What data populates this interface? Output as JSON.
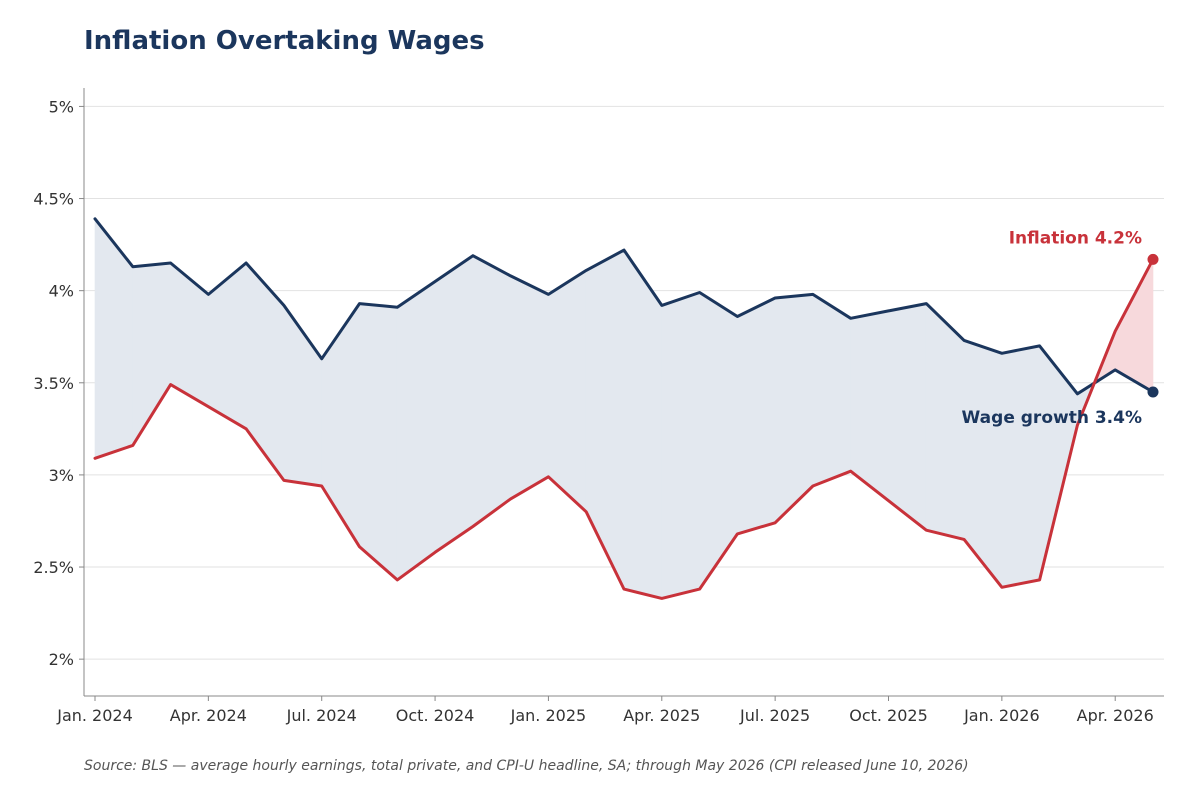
{
  "chart_data": {
    "type": "line",
    "title": "Inflation Overtaking Wages",
    "source": "Source: BLS — average hourly earnings, total private, and CPI-U headline, SA; through May 2026 (CPI released June 10, 2026)",
    "x": [
      "2024-01",
      "2024-02",
      "2024-03",
      "2024-04",
      "2024-05",
      "2024-06",
      "2024-07",
      "2024-08",
      "2024-09",
      "2024-10",
      "2024-11",
      "2024-12",
      "2025-01",
      "2025-02",
      "2025-03",
      "2025-04",
      "2025-05",
      "2025-06",
      "2025-07",
      "2025-08",
      "2025-09",
      "2025-10",
      "2025-11",
      "2025-12",
      "2026-01",
      "2026-02",
      "2026-03",
      "2026-04",
      "2026-05"
    ],
    "series": [
      {
        "name": "Wage growth",
        "color": "#1b365d",
        "end_label": "Wage growth 3.4%",
        "values": [
          4.39,
          4.13,
          4.15,
          3.98,
          4.15,
          3.92,
          3.63,
          3.93,
          3.91,
          4.05,
          4.19,
          4.08,
          3.98,
          4.11,
          4.22,
          3.92,
          3.99,
          3.86,
          3.96,
          3.98,
          3.85,
          3.89,
          3.93,
          3.73,
          3.66,
          3.7,
          3.44,
          3.57,
          3.45
        ]
      },
      {
        "name": "Inflation",
        "color": "#c8323a",
        "end_label": "Inflation 4.2%",
        "values": [
          3.09,
          3.16,
          3.49,
          3.37,
          3.25,
          2.97,
          2.94,
          2.61,
          2.43,
          2.58,
          2.72,
          2.87,
          2.99,
          2.8,
          2.38,
          2.33,
          2.38,
          2.68,
          2.74,
          2.94,
          3.02,
          2.86,
          2.7,
          2.65,
          2.39,
          2.43,
          3.27,
          3.78,
          4.17
        ]
      }
    ],
    "x_ticks": [
      {
        "value": "2024-01",
        "label": "Jan. 2024"
      },
      {
        "value": "2024-04",
        "label": "Apr. 2024"
      },
      {
        "value": "2024-07",
        "label": "Jul. 2024"
      },
      {
        "value": "2024-10",
        "label": "Oct. 2024"
      },
      {
        "value": "2025-01",
        "label": "Jan. 2025"
      },
      {
        "value": "2025-04",
        "label": "Apr. 2025"
      },
      {
        "value": "2025-07",
        "label": "Jul. 2025"
      },
      {
        "value": "2025-10",
        "label": "Oct. 2025"
      },
      {
        "value": "2026-01",
        "label": "Jan. 2026"
      },
      {
        "value": "2026-04",
        "label": "Apr. 2026"
      }
    ],
    "y_ticks": [
      {
        "value": 2,
        "label": "2%"
      },
      {
        "value": 2.5,
        "label": "2.5%"
      },
      {
        "value": 3,
        "label": "3%"
      },
      {
        "value": 3.5,
        "label": "3.5%"
      },
      {
        "value": 4,
        "label": "4%"
      },
      {
        "value": 4.5,
        "label": "4.5%"
      },
      {
        "value": 5,
        "label": "5%"
      }
    ],
    "ylim": [
      1.8,
      5.1
    ],
    "xlim": [
      "2024-01",
      "2026-05"
    ],
    "grid": "horizontal",
    "gap_fill_colors": {
      "wage_above": "#e3e8ef",
      "inflation_above": "#f7d9dc"
    }
  }
}
